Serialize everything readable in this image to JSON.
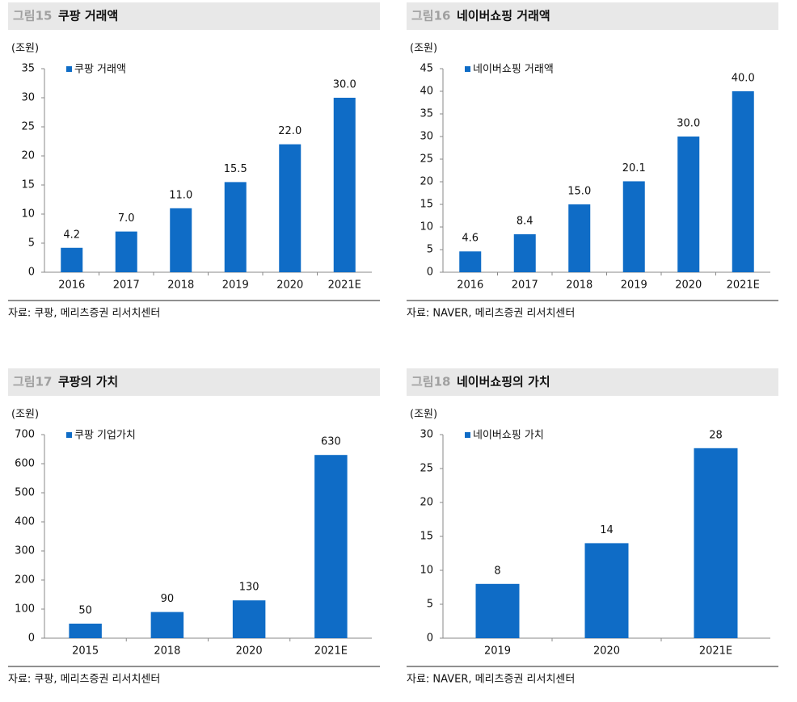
{
  "chart_data": [
    {
      "type": "bar",
      "figure": "그림15",
      "title": "쿠팡 거래액",
      "unit_label": "(조원)",
      "source": "자료: 쿠팡, 메리츠증권 리서치센터",
      "categories": [
        "2016",
        "2017",
        "2018",
        "2019",
        "2020",
        "2021E"
      ],
      "series": [
        {
          "name": "쿠팡 거래액",
          "color": "#0f6cc6",
          "values": [
            4.2,
            7.0,
            11.0,
            15.5,
            22.0,
            30.0
          ],
          "value_labels": [
            "4.2",
            "7.0",
            "11.0",
            "15.5",
            "22.0",
            "30.0"
          ]
        }
      ],
      "ylim": [
        0,
        35
      ],
      "yticks": [
        0,
        5,
        10,
        15,
        20,
        25,
        30,
        35
      ]
    },
    {
      "type": "bar",
      "figure": "그림16",
      "title": "네이버쇼핑 거래액",
      "unit_label": "(조원)",
      "source": "자료: NAVER, 메리츠증권 리서치센터",
      "categories": [
        "2016",
        "2017",
        "2018",
        "2019",
        "2020",
        "2021E"
      ],
      "series": [
        {
          "name": "네이버쇼핑 거래액",
          "color": "#0f6cc6",
          "values": [
            4.6,
            8.4,
            15.0,
            20.1,
            30.0,
            40.0
          ],
          "value_labels": [
            "4.6",
            "8.4",
            "15.0",
            "20.1",
            "30.0",
            "40.0"
          ]
        }
      ],
      "ylim": [
        0,
        45
      ],
      "yticks": [
        0,
        5,
        10,
        15,
        20,
        25,
        30,
        35,
        40,
        45
      ]
    },
    {
      "type": "bar",
      "figure": "그림17",
      "title": "쿠팡의 가치",
      "unit_label": "(조원)",
      "source": "자료: 쿠팡, 메리츠증권 리서치센터",
      "categories": [
        "2015",
        "2018",
        "2020",
        "2021E"
      ],
      "series": [
        {
          "name": "쿠팡 기업가치",
          "color": "#0f6cc6",
          "values": [
            50,
            90,
            130,
            630
          ]
        }
      ],
      "ylim": [
        0,
        700
      ],
      "yticks": [
        0,
        100,
        200,
        300,
        400,
        500,
        600,
        700
      ]
    },
    {
      "type": "bar",
      "figure": "그림18",
      "title": "네이버쇼핑의 가치",
      "unit_label": "(조원)",
      "source": "자료: NAVER, 메리츠증권 리서치센터",
      "categories": [
        "2019",
        "2020",
        "2021E"
      ],
      "series": [
        {
          "name": "네이버쇼핑 가치",
          "color": "#0f6cc6",
          "values": [
            8,
            14,
            28
          ]
        }
      ],
      "ylim": [
        0,
        30
      ],
      "yticks": [
        0,
        5,
        10,
        15,
        20,
        25,
        30
      ]
    }
  ]
}
